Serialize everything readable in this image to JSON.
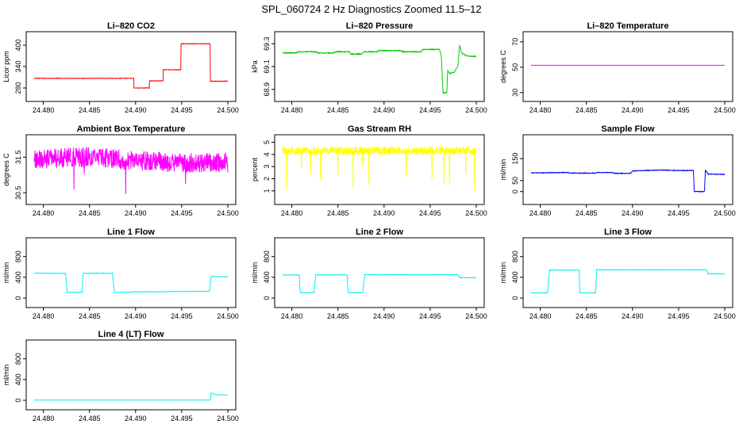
{
  "figure": {
    "title": "SPL_060724  2 Hz Diagnostics Zoomed 11.5–12"
  },
  "chart_data": [
    {
      "type": "line",
      "title": "Li–820 CO2",
      "ylabel": "Licor ppm",
      "color": "#ff0000",
      "xlim": [
        24.479,
        24.5
      ],
      "ylim": [
        260,
        420
      ],
      "xticks": [
        "24.480",
        "24.485",
        "24.490",
        "24.495",
        "24.500"
      ],
      "yticks": [
        {
          "v": 280,
          "label": "280"
        },
        {
          "v": 340,
          "label": "340"
        },
        {
          "v": 400,
          "label": "400"
        }
      ],
      "series": [
        {
          "noise": 0.7,
          "points": [
            [
              24.479,
              307
            ],
            [
              24.4898,
              307
            ],
            [
              24.4898,
              280
            ],
            [
              24.4915,
              280
            ],
            [
              24.4915,
              300
            ],
            [
              24.493,
              300
            ],
            [
              24.493,
              331
            ],
            [
              24.4949,
              331
            ],
            [
              24.4949,
              404
            ],
            [
              24.4981,
              404
            ],
            [
              24.4981,
              299
            ],
            [
              24.5,
              299
            ]
          ]
        }
      ]
    },
    {
      "type": "line",
      "title": "Li–820 Pressure",
      "ylabel": "kPa",
      "color": "#00cc00",
      "xlim": [
        24.479,
        24.5
      ],
      "ylim": [
        68.85,
        69.35
      ],
      "xticks": [
        "24.480",
        "24.485",
        "24.490",
        "24.495",
        "24.500"
      ],
      "yticks": [
        {
          "v": 68.9,
          "label": "68.9"
        },
        {
          "v": 69.1,
          "label": "69.1"
        },
        {
          "v": 69.3,
          "label": "69.3"
        }
      ],
      "series": [
        {
          "noise": 0.004,
          "points": [
            [
              24.479,
              69.22
            ],
            [
              24.4805,
              69.22
            ],
            [
              24.4807,
              69.23
            ],
            [
              24.4826,
              69.23
            ],
            [
              24.4828,
              69.22
            ],
            [
              24.4845,
              69.22
            ],
            [
              24.4848,
              69.23
            ],
            [
              24.4862,
              69.23
            ],
            [
              24.4864,
              69.21
            ],
            [
              24.4876,
              69.21
            ],
            [
              24.4878,
              69.23
            ],
            [
              24.4892,
              69.23
            ],
            [
              24.4894,
              69.24
            ],
            [
              24.4918,
              69.24
            ],
            [
              24.492,
              69.23
            ],
            [
              24.494,
              69.23
            ],
            [
              24.4942,
              69.25
            ],
            [
              24.496,
              69.25
            ],
            [
              24.4962,
              69.2
            ],
            [
              24.4964,
              68.87
            ],
            [
              24.4968,
              68.87
            ],
            [
              24.4969,
              69.07
            ],
            [
              24.4971,
              69.04
            ],
            [
              24.4976,
              69.05
            ],
            [
              24.4978,
              69.08
            ],
            [
              24.498,
              69.1
            ],
            [
              24.4982,
              69.29
            ],
            [
              24.4984,
              69.22
            ],
            [
              24.4988,
              69.2
            ],
            [
              24.4992,
              69.19
            ],
            [
              24.5,
              69.19
            ]
          ]
        }
      ]
    },
    {
      "type": "line",
      "title": "Li–820 Temperature",
      "ylabel": "degrees C",
      "color": "#ff00ff",
      "xlim": [
        24.479,
        24.5
      ],
      "ylim": [
        28,
        73
      ],
      "xticks": [
        "24.480",
        "24.485",
        "24.490",
        "24.495",
        "24.500"
      ],
      "yticks": [
        {
          "v": 30,
          "label": "30"
        },
        {
          "v": 50,
          "label": "50"
        },
        {
          "v": 70,
          "label": "70"
        }
      ],
      "series": [
        {
          "noise": 0,
          "points": [
            [
              24.479,
              51.5
            ],
            [
              24.5,
              51.5
            ]
          ]
        }
      ]
    },
    {
      "type": "line",
      "title": "Ambient Box Temperature",
      "ylabel": "degrees C",
      "color": "#ff00ff",
      "xlim": [
        24.479,
        24.5
      ],
      "ylim": [
        30.35,
        31.95
      ],
      "xticks": [
        "24.480",
        "24.485",
        "24.490",
        "24.495",
        "24.500"
      ],
      "yticks": [
        {
          "v": 30.5,
          "label": "30.5"
        },
        {
          "v": 31.5,
          "label": "31.5"
        }
      ],
      "series": [
        {
          "noise": 0.28,
          "points": [
            [
              24.479,
              31.45
            ],
            [
              24.485,
              31.5
            ],
            [
              24.49,
              31.4
            ],
            [
              24.495,
              31.35
            ],
            [
              24.5,
              31.35
            ]
          ]
        }
      ]
    },
    {
      "type": "line",
      "title": "Gas Stream RH",
      "ylabel": "percent",
      "color": "#ffff00",
      "xlim": [
        24.479,
        24.5
      ],
      "ylim": [
        0.4,
        5.1
      ],
      "xticks": [
        "24.480",
        "24.485",
        "24.490",
        "24.495",
        "24.500"
      ],
      "yticks": [
        {
          "v": 1,
          "label": "1"
        },
        {
          "v": 2,
          "label": "2"
        },
        {
          "v": 3,
          "label": "3"
        },
        {
          "v": 4,
          "label": "4"
        },
        {
          "v": 5,
          "label": "5"
        }
      ],
      "series": [
        {
          "noise": 0.35,
          "points": [
            [
              24.479,
              4.3
            ],
            [
              24.5,
              4.3
            ]
          ]
        }
      ]
    },
    {
      "type": "line",
      "title": "Sample Flow",
      "ylabel": "ml/min",
      "color": "#0000ee",
      "xlim": [
        24.479,
        24.5
      ],
      "ylim": [
        -30,
        230
      ],
      "xticks": [
        "24.480",
        "24.485",
        "24.490",
        "24.495",
        "24.500"
      ],
      "yticks": [
        {
          "v": 0,
          "label": "0"
        },
        {
          "v": 50,
          "label": "50"
        },
        {
          "v": 150,
          "label": "150"
        }
      ],
      "series": [
        {
          "noise": 1.5,
          "points": [
            [
              24.479,
              85
            ],
            [
              24.483,
              87
            ],
            [
              24.4832,
              84
            ],
            [
              24.486,
              84
            ],
            [
              24.4862,
              87
            ],
            [
              24.4878,
              87
            ],
            [
              24.488,
              83
            ],
            [
              24.4898,
              83
            ],
            [
              24.49,
              94
            ],
            [
              24.493,
              98
            ],
            [
              24.495,
              96
            ],
            [
              24.4966,
              96
            ],
            [
              24.4967,
              0
            ],
            [
              24.4978,
              0
            ],
            [
              24.4979,
              98
            ],
            [
              24.4982,
              80
            ],
            [
              24.5,
              78
            ]
          ]
        }
      ]
    },
    {
      "type": "line",
      "title": "Line 1 Flow",
      "ylabel": "ml/min",
      "color": "#00eeee",
      "xlim": [
        24.479,
        24.5
      ],
      "ylim": [
        -60,
        1040
      ],
      "xticks": [
        "24.480",
        "24.485",
        "24.490",
        "24.495",
        "24.500"
      ],
      "yticks": [
        {
          "v": 0,
          "label": "0"
        },
        {
          "v": 400,
          "label": "400"
        },
        {
          "v": 800,
          "label": "800"
        }
      ],
      "series": [
        {
          "noise": 4,
          "points": [
            [
              24.479,
              480
            ],
            [
              24.4824,
              475
            ],
            [
              24.4826,
              110
            ],
            [
              24.4842,
              110
            ],
            [
              24.4843,
              478
            ],
            [
              24.4875,
              478
            ],
            [
              24.4877,
              110
            ],
            [
              24.4894,
              110
            ],
            [
              24.4896,
              120
            ],
            [
              24.498,
              130
            ],
            [
              24.4982,
              420
            ],
            [
              24.5,
              410
            ]
          ]
        }
      ]
    },
    {
      "type": "line",
      "title": "Line 2 Flow",
      "ylabel": "ml/min",
      "color": "#00eeee",
      "xlim": [
        24.479,
        24.5
      ],
      "ylim": [
        -60,
        1040
      ],
      "xticks": [
        "24.480",
        "24.485",
        "24.490",
        "24.495",
        "24.500"
      ],
      "yticks": [
        {
          "v": 0,
          "label": "0"
        },
        {
          "v": 400,
          "label": "400"
        },
        {
          "v": 800,
          "label": "800"
        }
      ],
      "series": [
        {
          "noise": 4,
          "points": [
            [
              24.479,
              445
            ],
            [
              24.4808,
              445
            ],
            [
              24.4809,
              105
            ],
            [
              24.4824,
              105
            ],
            [
              24.4826,
              448
            ],
            [
              24.486,
              448
            ],
            [
              24.4861,
              105
            ],
            [
              24.4877,
              105
            ],
            [
              24.4879,
              450
            ],
            [
              24.498,
              450
            ],
            [
              24.4982,
              395
            ],
            [
              24.5,
              390
            ]
          ]
        }
      ]
    },
    {
      "type": "line",
      "title": "Line 3 Flow",
      "ylabel": "ml/min",
      "color": "#00eeee",
      "xlim": [
        24.479,
        24.5
      ],
      "ylim": [
        -60,
        1040
      ],
      "xticks": [
        "24.480",
        "24.485",
        "24.490",
        "24.495",
        "24.500"
      ],
      "yticks": [
        {
          "v": 0,
          "label": "0"
        },
        {
          "v": 400,
          "label": "400"
        },
        {
          "v": 800,
          "label": "800"
        }
      ],
      "series": [
        {
          "noise": 4,
          "points": [
            [
              24.479,
              100
            ],
            [
              24.4808,
              100
            ],
            [
              24.481,
              540
            ],
            [
              24.4842,
              540
            ],
            [
              24.4843,
              100
            ],
            [
              24.486,
              100
            ],
            [
              24.4861,
              545
            ],
            [
              24.498,
              545
            ],
            [
              24.4982,
              470
            ],
            [
              24.5,
              465
            ]
          ]
        }
      ]
    },
    {
      "type": "line",
      "title": "Line 4 (LT) Flow",
      "ylabel": "ml/min",
      "color": "#00eeee",
      "xlim": [
        24.479,
        24.5
      ],
      "ylim": [
        -60,
        1040
      ],
      "xticks": [
        "24.480",
        "24.485",
        "24.490",
        "24.495",
        "24.500"
      ],
      "yticks": [
        {
          "v": 0,
          "label": "0"
        },
        {
          "v": 400,
          "label": "400"
        },
        {
          "v": 800,
          "label": "800"
        }
      ],
      "series": [
        {
          "noise": 1,
          "points": [
            [
              24.479,
              5
            ],
            [
              24.4981,
              5
            ],
            [
              24.4982,
              145
            ],
            [
              24.4986,
              110
            ],
            [
              24.5,
              100
            ]
          ]
        }
      ]
    }
  ]
}
